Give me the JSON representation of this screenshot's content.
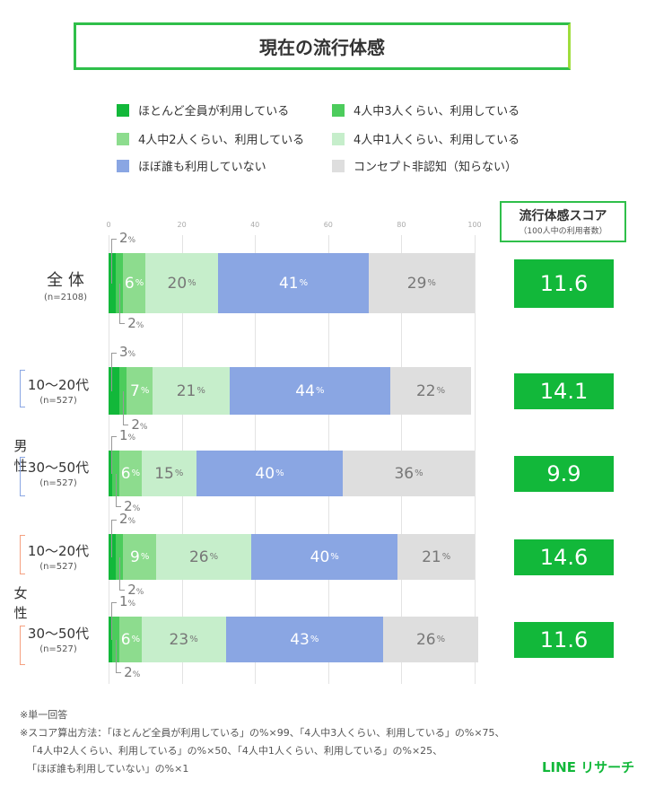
{
  "title": "現在の流行体感",
  "legend": [
    {
      "label": "ほとんど全員が利用している",
      "color": "#12b83a"
    },
    {
      "label": "4人中3人くらい、利用している",
      "color": "#4ccc5c"
    },
    {
      "label": "4人中2人くらい、利用している",
      "color": "#8ddc8e"
    },
    {
      "label": "4人中1人くらい、利用している",
      "color": "#c6eecb"
    },
    {
      "label": "ほぼ誰も利用していない",
      "color": "#8aa6e3"
    },
    {
      "label": "コンセプト非認知（知らない）",
      "color": "#dedede"
    }
  ],
  "score_header": {
    "title": "流行体感スコア",
    "subtitle": "（100人中の利用者数）"
  },
  "groups": {
    "male": "男性",
    "female": "女性"
  },
  "chart_data": {
    "type": "bar",
    "stacked": true,
    "orientation": "horizontal",
    "xlim": [
      0,
      100
    ],
    "ticks": [
      "0",
      "20",
      "40",
      "60",
      "80",
      "100"
    ],
    "grid": true,
    "unit": "%",
    "categories": [
      {
        "label": "全 体",
        "n": "(n=2108)",
        "group": ""
      },
      {
        "label": "10〜20代",
        "n": "(n=527)",
        "group": "male"
      },
      {
        "label": "30〜50代",
        "n": "(n=527)",
        "group": "male"
      },
      {
        "label": "10〜20代",
        "n": "(n=527)",
        "group": "female"
      },
      {
        "label": "30〜50代",
        "n": "(n=527)",
        "group": "female"
      }
    ],
    "series": [
      {
        "name": "ほとんど全員が利用している",
        "values": [
          2,
          3,
          1,
          2,
          1
        ]
      },
      {
        "name": "4人中3人くらい、利用している",
        "values": [
          2,
          2,
          2,
          2,
          2
        ]
      },
      {
        "name": "4人中2人くらい、利用している",
        "values": [
          6,
          7,
          6,
          9,
          6
        ]
      },
      {
        "name": "4人中1人くらい、利用している",
        "values": [
          20,
          21,
          15,
          26,
          23
        ]
      },
      {
        "name": "ほぼ誰も利用していない",
        "values": [
          41,
          44,
          40,
          40,
          43
        ]
      },
      {
        "name": "コンセプト非認知（知らない）",
        "values": [
          29,
          22,
          36,
          21,
          26
        ]
      }
    ],
    "scores": [
      "11.6",
      "14.1",
      "9.9",
      "14.6",
      "11.6"
    ]
  },
  "notes": [
    "※単一回答",
    "※スコア算出方法：「ほとんど全員が利用している」の%×99、「4人中3人くらい、利用している」の%×75、",
    "「4人中2人くらい、利用している」の%×50、「4人中1人くらい、利用している」の%×25、",
    "「ほぼ誰も利用していない」の%×1"
  ],
  "logo": "LINE リサーチ"
}
